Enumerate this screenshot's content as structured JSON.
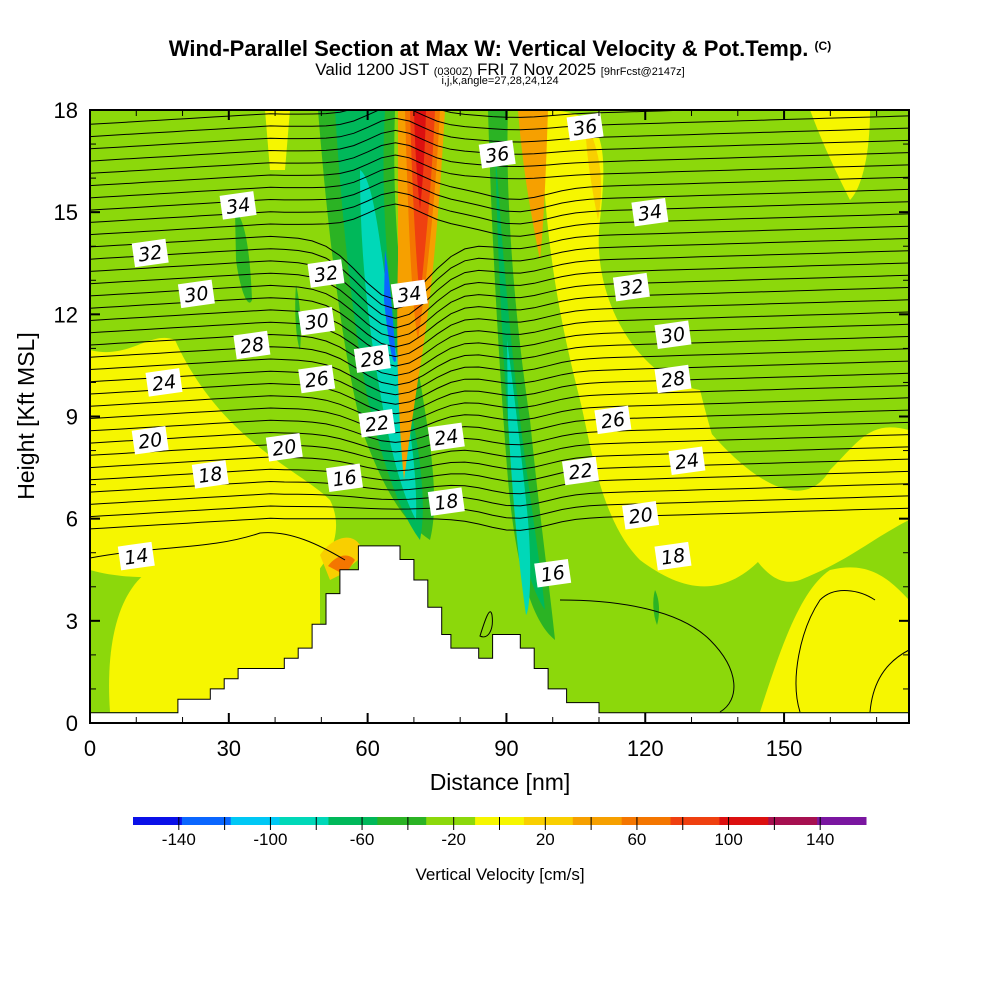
{
  "title": {
    "main": "Wind-Parallel Section at Max W: Vertical Velocity & Pot.Temp.",
    "tag": "(C)",
    "valid_prefix": "Valid 1200 JST",
    "valid_utc": "(0300Z)",
    "valid_date": "FRI 7 Nov 2025",
    "forecast": "[9hrFcst@2147z]",
    "indices": "i,j,k,angle=27,28,24,124"
  },
  "chart_data": {
    "type": "contour-section",
    "xlabel": "Distance [nm]",
    "ylabel": "Height [Kft MSL]",
    "xlim": [
      0,
      177
    ],
    "ylim": [
      0,
      18
    ],
    "x_ticks": [
      0,
      30,
      60,
      90,
      120,
      150
    ],
    "y_ticks": [
      0,
      3,
      6,
      9,
      12,
      15,
      18
    ],
    "colorbar": {
      "label": "Vertical Velocity [cm/s]",
      "tick_values": [
        -140,
        -100,
        -60,
        -20,
        20,
        60,
        100,
        140
      ],
      "range": [
        -160,
        160
      ],
      "step": 20,
      "colors": [
        "#0a10e8",
        "#0a66ff",
        "#00c8f5",
        "#00d8b8",
        "#00b85a",
        "#2bb324",
        "#8cd80b",
        "#f6f600",
        "#f9cf00",
        "#f6a000",
        "#f47600",
        "#ef4010",
        "#dc1010",
        "#a61050",
        "#7a16a0"
      ]
    },
    "shading_fill_by_class": {
      "-120..-100": "#0a66ff",
      "-80..-60": "#00d8b8",
      "-60..-40": "#00b85a",
      "-40..-20": "#2bb324",
      "-20..0": "#8cd80b",
      "0..20": "#f6f600",
      "40..60": "#f6a000",
      "60..80": "#f47600",
      "80..100": "#ef4010",
      "100..120": "#dc1010"
    },
    "contour_labels": [
      {
        "text": "34",
        "x": 32,
        "y": 15.2
      },
      {
        "text": "32",
        "x": 13,
        "y": 13.8
      },
      {
        "text": "30",
        "x": 23,
        "y": 12.6
      },
      {
        "text": "32",
        "x": 51,
        "y": 13.2
      },
      {
        "text": "30",
        "x": 49,
        "y": 11.8
      },
      {
        "text": "28",
        "x": 35,
        "y": 11.1
      },
      {
        "text": "26",
        "x": 49,
        "y": 10.1
      },
      {
        "text": "24",
        "x": 16,
        "y": 10.0
      },
      {
        "text": "28",
        "x": 61,
        "y": 10.7
      },
      {
        "text": "22",
        "x": 62,
        "y": 8.8
      },
      {
        "text": "20",
        "x": 13,
        "y": 8.3
      },
      {
        "text": "20",
        "x": 42,
        "y": 8.1
      },
      {
        "text": "18",
        "x": 26,
        "y": 7.3
      },
      {
        "text": "16",
        "x": 55,
        "y": 7.2
      },
      {
        "text": "14",
        "x": 10,
        "y": 4.9
      },
      {
        "text": "34",
        "x": 69,
        "y": 12.6
      },
      {
        "text": "36",
        "x": 88,
        "y": 16.7
      },
      {
        "text": "36",
        "x": 107,
        "y": 17.5
      },
      {
        "text": "34",
        "x": 121,
        "y": 15.0
      },
      {
        "text": "32",
        "x": 117,
        "y": 12.8
      },
      {
        "text": "30",
        "x": 126,
        "y": 11.4
      },
      {
        "text": "28",
        "x": 126,
        "y": 10.1
      },
      {
        "text": "26",
        "x": 113,
        "y": 8.9
      },
      {
        "text": "24",
        "x": 77,
        "y": 8.4
      },
      {
        "text": "24",
        "x": 129,
        "y": 7.7
      },
      {
        "text": "22",
        "x": 106,
        "y": 7.4
      },
      {
        "text": "18",
        "x": 77,
        "y": 6.5
      },
      {
        "text": "20",
        "x": 119,
        "y": 6.1
      },
      {
        "text": "18",
        "x": 126,
        "y": 4.9
      },
      {
        "text": "16",
        "x": 100,
        "y": 4.4
      }
    ],
    "terrain_profile": [
      [
        0,
        0.3
      ],
      [
        19,
        0.3
      ],
      [
        19,
        0.7
      ],
      [
        26,
        0.7
      ],
      [
        26,
        1.0
      ],
      [
        29,
        1.0
      ],
      [
        29,
        1.3
      ],
      [
        32,
        1.3
      ],
      [
        32,
        1.6
      ],
      [
        42,
        1.6
      ],
      [
        42,
        1.9
      ],
      [
        45,
        1.9
      ],
      [
        45,
        2.2
      ],
      [
        48,
        2.2
      ],
      [
        48,
        2.9
      ],
      [
        51,
        2.9
      ],
      [
        51,
        3.8
      ],
      [
        54,
        3.8
      ],
      [
        54,
        4.5
      ],
      [
        58,
        4.5
      ],
      [
        58,
        5.2
      ],
      [
        67,
        5.2
      ],
      [
        67,
        4.8
      ],
      [
        70,
        4.8
      ],
      [
        70,
        4.2
      ],
      [
        73,
        4.2
      ],
      [
        73,
        3.4
      ],
      [
        76,
        3.4
      ],
      [
        76,
        2.6
      ],
      [
        78,
        2.6
      ],
      [
        78,
        2.2
      ],
      [
        84,
        2.2
      ],
      [
        84,
        1.9
      ],
      [
        87,
        1.9
      ],
      [
        87,
        2.6
      ],
      [
        93,
        2.6
      ],
      [
        93,
        2.2
      ],
      [
        96,
        2.2
      ],
      [
        96,
        1.6
      ],
      [
        99,
        1.6
      ],
      [
        99,
        1.0
      ],
      [
        103,
        1.0
      ],
      [
        103,
        0.6
      ],
      [
        110,
        0.6
      ],
      [
        110,
        0.3
      ],
      [
        177,
        0.3
      ]
    ]
  }
}
